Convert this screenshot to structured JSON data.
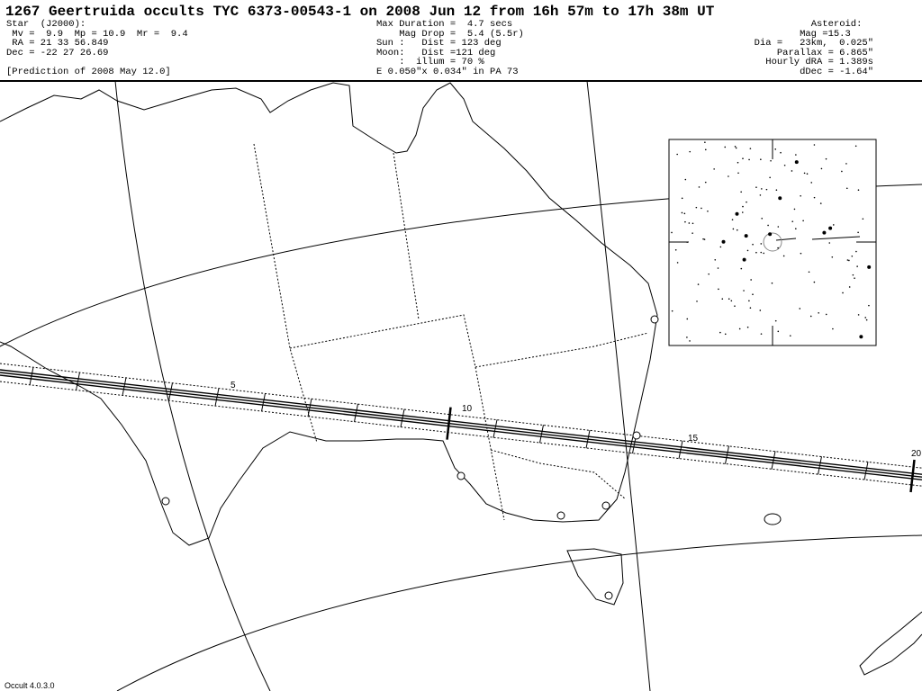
{
  "title": "1267 Geertruida occults TYC 6373-00543-1 on 2008 Jun 12 from 16h 57m to 17h 38m UT",
  "star": {
    "header": "Star  (J2000):",
    "mags": " Mv =  9.9  Mp = 10.9  Mr =  9.4",
    "ra": " RA = 21 33 56.849",
    "dec": "Dec = -22 27 26.69",
    "prediction": "[Prediction of 2008 May 12.0]"
  },
  "event": {
    "duration": "Max Duration =  4.7 secs",
    "magdrop": "    Mag Drop =  5.4 (5.5r)",
    "sun": "Sun :   Dist = 123 deg",
    "moon": "Moon:   Dist =121 deg",
    "illum": "    :  illum = 70 %",
    "ellipse": "E 0.050\"x 0.034\" in PA 73"
  },
  "asteroid": {
    "header": "Asteroid:  ",
    "mag": "Mag =15.3    ",
    "dia": "Dia =   23km,  0.025\"",
    "parallax": "Parallax = 6.865\"",
    "dra": "Hourly dRA = 1.389s",
    "ddec": "dDec = -1.64\""
  },
  "path_labels": [
    "5",
    "10",
    "15",
    "20"
  ],
  "version": "Occult 4.0.3.0",
  "colors": {
    "ink": "#000000",
    "background": "#ffffff"
  }
}
